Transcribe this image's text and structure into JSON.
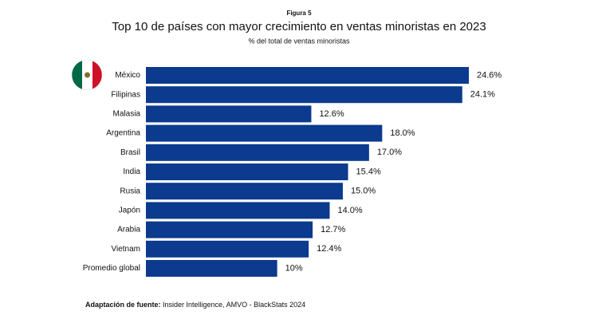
{
  "figure_label": "Figura 5",
  "chart_data": {
    "type": "bar",
    "orientation": "horizontal",
    "title": "Top 10 de países con mayor crecimiento en ventas minoristas en 2023",
    "subtitle": "% del total de ventas minoristas",
    "categories": [
      "México",
      "Filipinas",
      "Malasia",
      "Argentina",
      "Brasil",
      "India",
      "Rusia",
      "Japón",
      "Arabia",
      "Vietnam",
      "Promedio global"
    ],
    "values": [
      24.6,
      24.1,
      12.6,
      18.0,
      17.0,
      15.4,
      15.0,
      14.0,
      12.7,
      12.4,
      10
    ],
    "value_labels": [
      "24.6%",
      "24.1%",
      "12.6%",
      "18.0%",
      "17.0%",
      "15.4%",
      "15.0%",
      "14.0%",
      "12.7%",
      "12.4%",
      "10%"
    ],
    "color": "#0b3a8e"
  },
  "source": {
    "label": "Adaptación de fuente:",
    "text": " Insider Intelligence, AMVO - BlackStats 2024"
  }
}
